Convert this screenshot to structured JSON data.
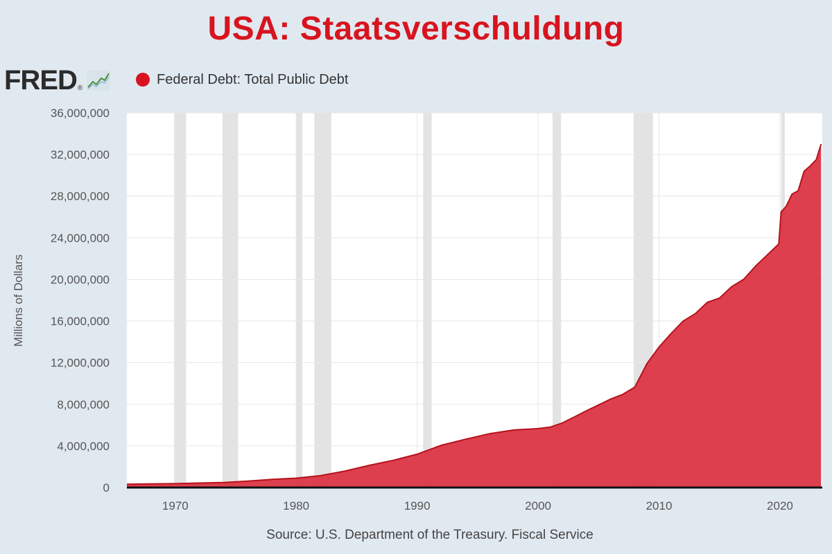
{
  "header": {
    "title": "USA: Staatsverschuldung",
    "logo_text": "FRED",
    "logo_dot": "®"
  },
  "legend": {
    "series_label": "Federal Debt: Total Public Debt",
    "color": "#d7141f"
  },
  "footer": {
    "source": "Source: U.S. Department of the Treasury. Fiscal Service"
  },
  "colors": {
    "background": "#e1e9f0",
    "plot_background": "#ffffff",
    "series_fill": "#dc3545",
    "series_line": "#b5121b",
    "recession_band": "#e3e3e3",
    "gridline": "#e6e6e6"
  },
  "icons": {
    "logo_chart": "fred-chart-icon",
    "legend_marker": "circle-marker"
  },
  "chart_data": {
    "type": "area",
    "ylabel": "Millions of Dollars",
    "xlim": [
      1966,
      2023.5
    ],
    "ylim": [
      0,
      36000000
    ],
    "grid": true,
    "legend_position": "top-left",
    "x_ticks": [
      "1970",
      "1980",
      "1990",
      "2000",
      "2010",
      "2020"
    ],
    "y_ticks": [
      "0",
      "4,000,000",
      "8,000,000",
      "12,000,000",
      "16,000,000",
      "20,000,000",
      "24,000,000",
      "28,000,000",
      "32,000,000",
      "36,000,000"
    ],
    "recessions": [
      [
        1969.9,
        1970.9
      ],
      [
        1973.9,
        1975.2
      ],
      [
        1980.0,
        1980.5
      ],
      [
        1981.5,
        1982.9
      ],
      [
        1990.5,
        1991.2
      ],
      [
        2001.2,
        2001.9
      ],
      [
        2007.9,
        2009.5
      ],
      [
        2020.1,
        2020.4
      ]
    ],
    "series": [
      {
        "name": "Federal Debt: Total Public Debt",
        "x": [
          1966,
          1968,
          1970,
          1972,
          1974,
          1976,
          1978,
          1980,
          1982,
          1984,
          1986,
          1988,
          1990,
          1992,
          1994,
          1996,
          1998,
          2000,
          2001,
          2002,
          2003,
          2004,
          2005,
          2006,
          2007,
          2008,
          2009,
          2010,
          2011,
          2012,
          2013,
          2014,
          2015,
          2016,
          2017,
          2018,
          2019,
          2019.9,
          2020.1,
          2020.5,
          2021,
          2021.5,
          2022,
          2022.5,
          2023,
          2023.4
        ],
        "values": [
          320000,
          345000,
          370000,
          430000,
          480000,
          620000,
          780000,
          900000,
          1140000,
          1570000,
          2120000,
          2600000,
          3200000,
          4060000,
          4640000,
          5180000,
          5530000,
          5660000,
          5800000,
          6200000,
          6780000,
          7380000,
          7930000,
          8500000,
          8950000,
          9650000,
          11900000,
          13500000,
          14800000,
          16000000,
          16700000,
          17800000,
          18200000,
          19300000,
          20000000,
          21300000,
          22400000,
          23400000,
          26500000,
          27000000,
          28200000,
          28500000,
          30400000,
          30900000,
          31500000,
          33000000
        ]
      }
    ]
  }
}
